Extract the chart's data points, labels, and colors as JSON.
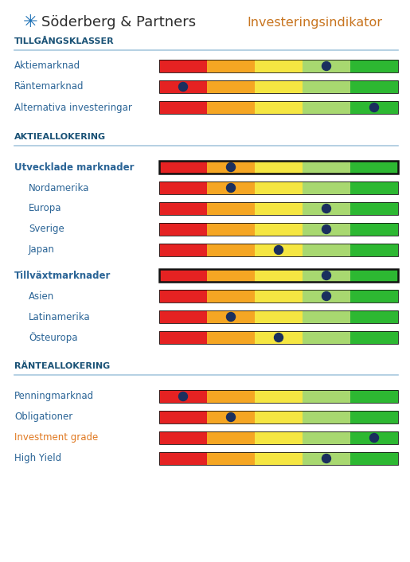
{
  "title_main": "Söderberg & Partners",
  "title_sub": "Investeringsindikator",
  "bg_color": "#ffffff",
  "bar_colors": [
    "#e52222",
    "#f5a623",
    "#f5e642",
    "#a8d870",
    "#2db832"
  ],
  "dot_color": "#1a2f5e",
  "rows": [
    {
      "label": "Aktiemarknad",
      "bold": false,
      "indent": 0,
      "dot": 3.5,
      "thick_border": false,
      "label_color": "#2a6496"
    },
    {
      "label": "Räntemarknad",
      "bold": false,
      "indent": 0,
      "dot": 0.5,
      "thick_border": false,
      "label_color": "#2a6496"
    },
    {
      "label": "Alternativa investeringar",
      "bold": false,
      "indent": 0,
      "dot": 4.5,
      "thick_border": false,
      "label_color": "#2a6496"
    },
    {
      "label": "Utvecklade marknader",
      "bold": true,
      "indent": 0,
      "dot": 1.5,
      "thick_border": true,
      "label_color": "#2a6496"
    },
    {
      "label": "Nordamerika",
      "bold": false,
      "indent": 1,
      "dot": 1.5,
      "thick_border": false,
      "label_color": "#2a6496"
    },
    {
      "label": "Europa",
      "bold": false,
      "indent": 1,
      "dot": 3.5,
      "thick_border": false,
      "label_color": "#2a6496"
    },
    {
      "label": "Sverige",
      "bold": false,
      "indent": 1,
      "dot": 3.5,
      "thick_border": false,
      "label_color": "#2a6496"
    },
    {
      "label": "Japan",
      "bold": false,
      "indent": 1,
      "dot": 2.5,
      "thick_border": false,
      "label_color": "#2a6496"
    },
    {
      "label": "Tillväxtmarknader",
      "bold": true,
      "indent": 0,
      "dot": 3.5,
      "thick_border": true,
      "label_color": "#2a6496"
    },
    {
      "label": "Asien",
      "bold": false,
      "indent": 1,
      "dot": 3.5,
      "thick_border": false,
      "label_color": "#2a6496"
    },
    {
      "label": "Latinamerika",
      "bold": false,
      "indent": 1,
      "dot": 1.5,
      "thick_border": false,
      "label_color": "#2a6496"
    },
    {
      "label": "Östeuropa",
      "bold": false,
      "indent": 1,
      "dot": 2.5,
      "thick_border": false,
      "label_color": "#2a6496"
    },
    {
      "label": "Penningmarknad",
      "bold": false,
      "indent": 0,
      "dot": 0.5,
      "thick_border": false,
      "label_color": "#2a6496"
    },
    {
      "label": "Obligationer",
      "bold": false,
      "indent": 0,
      "dot": 1.5,
      "thick_border": false,
      "label_color": "#2a6496"
    },
    {
      "label": "Investment grade",
      "bold": false,
      "indent": 0,
      "dot": 4.5,
      "thick_border": false,
      "label_color": "#e07820"
    },
    {
      "label": "High Yield",
      "bold": false,
      "indent": 0,
      "dot": 3.5,
      "thick_border": false,
      "label_color": "#2a6496"
    }
  ],
  "sections": [
    {
      "label": "TILLGÅNGSKLASSER",
      "before_row": 0
    },
    {
      "label": "AKTIEALLOKERING",
      "before_row": 3
    },
    {
      "label": "RÄNTEALLOKERING",
      "before_row": 12
    }
  ],
  "header_color": "#1a5276",
  "section_line_color": "#a8c8de",
  "logo_color": "#1a6fb5",
  "title_color": "#2c2c2c",
  "subtitle_color": "#c87520"
}
